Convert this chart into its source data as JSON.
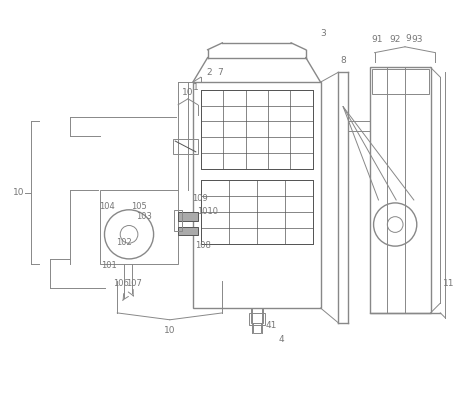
{
  "bg_color": "#ffffff",
  "line_color": "#888888",
  "dark_line": "#555555",
  "label_color": "#777777",
  "figsize": [
    4.54,
    3.97
  ],
  "dpi": 100
}
